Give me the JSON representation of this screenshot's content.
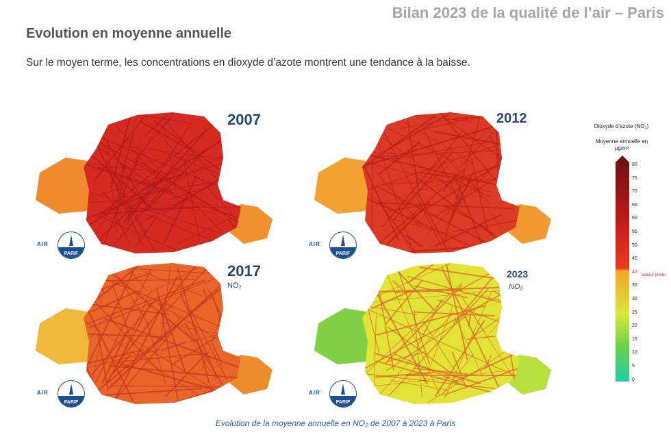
{
  "header": {
    "report_title": "Bilan 2023 de la qualité de l’air – Paris"
  },
  "section": {
    "title": "Evolution en moyenne annuelle",
    "intro": "Sur le moyen terme, les concentrations en dioxyde d’azote montrent une tendance à la baisse."
  },
  "maps": [
    {
      "year": "2007",
      "pollutant_label": "",
      "fill": "#d42a22",
      "road": "#b01a18",
      "west": "#ef8a2d",
      "east": "#f0912e"
    },
    {
      "year": "2012",
      "pollutant_label": "",
      "fill": "#dc3a24",
      "road": "#b52019",
      "west": "#f2a232",
      "east": "#f09a30"
    },
    {
      "year": "2017",
      "pollutant_label": "NO₂",
      "fill": "#e9662a",
      "road": "#c9361f",
      "west": "#f0b83a",
      "east": "#ee8c2c"
    },
    {
      "year": "2023",
      "pollutant_label": "NO₂",
      "fill": "#e1e436",
      "road": "#d9692a",
      "west": "#7fd043",
      "east": "#b6e03c"
    }
  ],
  "logo": {
    "prefix": "AIR",
    "name": "PARIF"
  },
  "legend": {
    "title": "Dioxyde d’azote (NO₂)",
    "subtitle": "Moyenne annuelle en µg/m³",
    "ticks": [
      "80",
      "75",
      "70",
      "65",
      "60",
      "55",
      "50",
      "45",
      "40",
      "35",
      "30",
      "25",
      "20",
      "15",
      "10",
      "5",
      "0"
    ],
    "limit_label": "Valeur limite",
    "colors": {
      "max": "#6b0f0f",
      "high": "#c41a1a",
      "limit": "#f03a1a",
      "mid": "#f5a52a",
      "low": "#d8e83a",
      "green": "#6acf4a",
      "min": "#1ecfa6"
    }
  },
  "caption": "Evolution de la moyenne annuelle en NO₂ de 2007 à 2023 à Paris"
}
